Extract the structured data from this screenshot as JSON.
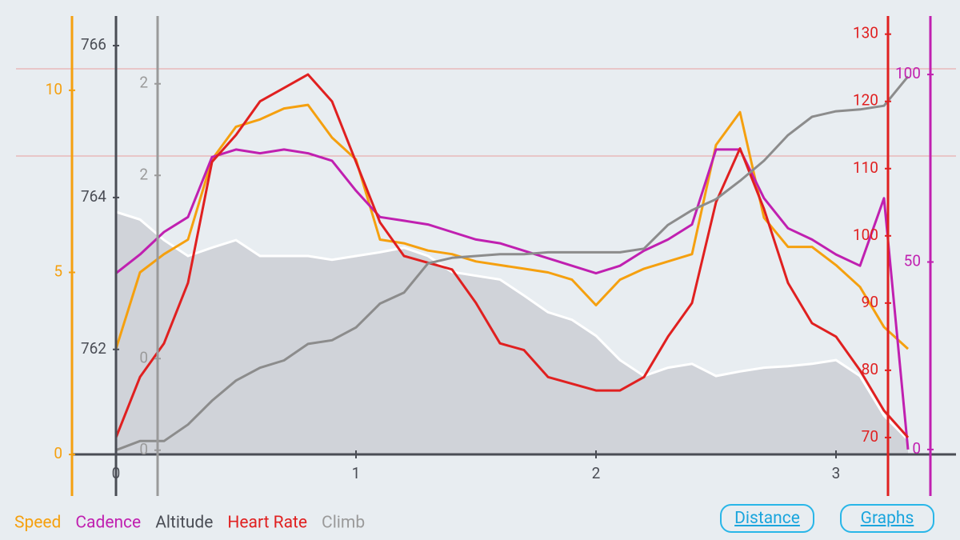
{
  "chart_data": {
    "type": "line",
    "x": [
      0,
      0.1,
      0.2,
      0.3,
      0.4,
      0.5,
      0.6,
      0.7,
      0.8,
      0.9,
      1.0,
      1.1,
      1.2,
      1.3,
      1.4,
      1.5,
      1.6,
      1.7,
      1.8,
      1.9,
      2.0,
      2.1,
      2.2,
      2.3,
      2.4,
      2.5,
      2.6,
      2.7,
      2.8,
      2.9,
      3.0,
      3.1,
      3.2,
      3.3
    ],
    "xlim": [
      -0.4,
      3.5
    ],
    "xticks": [
      0,
      1,
      2,
      3
    ],
    "y_axes": [
      {
        "color": "#f5a00f",
        "lim": [
          -1.14,
          12.04
        ],
        "ticks": [
          0,
          5,
          10
        ]
      },
      {
        "color": "#4a4d55",
        "lim": [
          760.07,
          766.39
        ],
        "ticks": [
          762,
          764,
          766
        ]
      },
      {
        "color": "#9a9a9a",
        "lim": [
          -0.25,
          2.37
        ],
        "ticks": [
          0,
          {
            "value": 0.5,
            "label": "0"
          },
          {
            "value": 1.5,
            "label": "2"
          },
          2
        ]
      },
      {
        "color": "#e02020",
        "lim": [
          61.3,
          132.7
        ],
        "ticks": [
          70,
          80,
          90,
          100,
          110,
          120,
          130
        ]
      },
      {
        "color": "#c020b0",
        "lim": [
          -12.4,
          115.6
        ],
        "ticks": [
          0,
          50,
          100
        ]
      }
    ],
    "series": [
      {
        "name": "Speed",
        "color": "#f5a00f",
        "axis": 0,
        "values": [
          2.9,
          5.0,
          5.5,
          5.9,
          8.1,
          9.0,
          9.2,
          9.5,
          9.6,
          8.7,
          8.1,
          5.9,
          5.8,
          5.6,
          5.5,
          5.3,
          5.2,
          5.1,
          5.0,
          4.8,
          4.1,
          4.8,
          5.1,
          5.3,
          5.5,
          8.5,
          9.4,
          6.5,
          5.7,
          5.7,
          5.2,
          4.6,
          3.5,
          2.9
        ]
      },
      {
        "name": "Cadence",
        "color": "#c020b0",
        "axis": 4,
        "values": [
          47,
          52,
          58,
          62,
          78,
          80,
          79,
          80,
          79,
          77,
          69,
          62,
          61,
          60,
          58,
          56,
          55,
          53,
          51,
          49,
          47,
          49,
          53,
          56,
          60,
          80,
          80,
          67,
          59,
          56,
          52,
          49,
          67,
          0
        ]
      },
      {
        "name": "Altitude",
        "color": "#ffffff",
        "fill": "#c9ccd3",
        "axis": 1,
        "values": [
          763.81,
          763.71,
          763.44,
          763.23,
          763.34,
          763.44,
          763.23,
          763.23,
          763.23,
          763.18,
          763.23,
          763.28,
          763.34,
          763.23,
          763.02,
          762.97,
          762.92,
          762.71,
          762.49,
          762.39,
          762.18,
          761.86,
          761.65,
          761.76,
          761.81,
          761.65,
          761.71,
          761.76,
          761.78,
          761.81,
          761.86,
          761.65,
          761.13,
          760.81
        ]
      },
      {
        "name": "Heart Rate",
        "color": "#e02020",
        "axis": 3,
        "values": [
          70,
          79,
          84,
          93,
          111,
          115,
          120,
          122,
          124,
          120,
          111,
          102,
          97,
          96,
          95,
          90,
          84,
          83,
          79,
          78,
          77,
          77,
          79,
          85,
          90,
          105,
          113,
          104,
          93,
          87,
          85,
          80,
          74,
          70
        ]
      },
      {
        "name": "Climb",
        "color": "#8c8c8c",
        "axis": 2,
        "values": [
          0,
          0.05,
          0.05,
          0.14,
          0.27,
          0.38,
          0.45,
          0.49,
          0.58,
          0.6,
          0.67,
          0.8,
          0.86,
          1.02,
          1.05,
          1.06,
          1.07,
          1.07,
          1.08,
          1.08,
          1.08,
          1.08,
          1.1,
          1.23,
          1.31,
          1.37,
          1.47,
          1.58,
          1.72,
          1.82,
          1.85,
          1.86,
          1.88,
          2.04
        ]
      }
    ],
    "buttons": [
      "Distance",
      "Graphs"
    ]
  }
}
